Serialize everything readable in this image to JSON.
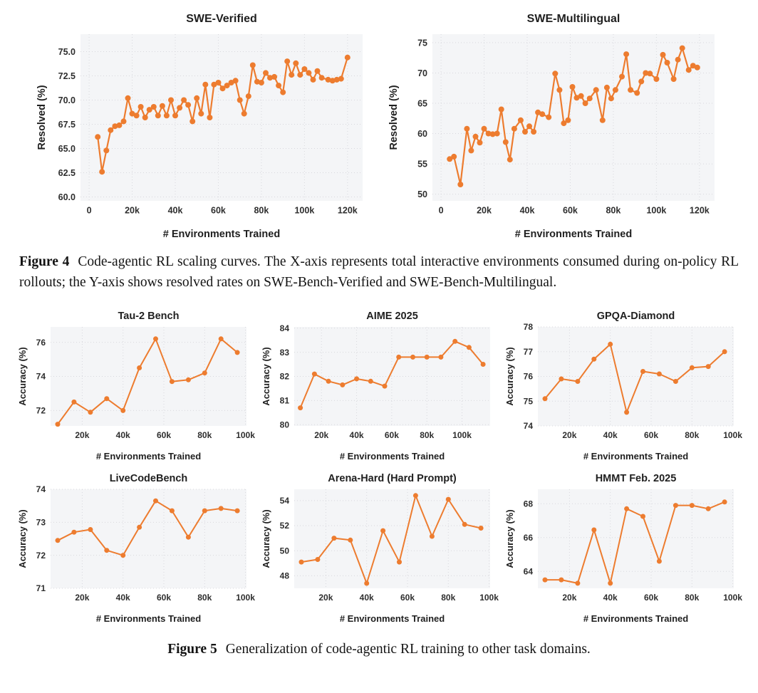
{
  "page": {
    "background": "#ffffff",
    "accent_color": "#ED7C2F",
    "panel_color": "#f4f5f7",
    "grid_color": "#d8d8dd",
    "text_color": "#1f1f1f",
    "tick_color": "#2e2e2e"
  },
  "figure4": {
    "caption_label": "Figure 4",
    "caption_text": "Code-agentic RL scaling curves. The X-axis represents total interactive environments consumed during on-policy RL rollouts; the Y-axis shows resolved rates on SWE-Bench-Verified and SWE-Bench-Multilingual."
  },
  "figure5": {
    "caption_label": "Figure 5",
    "caption_text": "Generalization of code-agentic RL training to other task domains."
  },
  "chart_data": [
    {
      "id": "swe-verified",
      "type": "line",
      "title": "SWE-Verified",
      "xlabel": "# Environments Trained",
      "ylabel": "Resolved (%)",
      "x_unit": "thousands of environments",
      "xlim": [
        -4,
        127
      ],
      "ylim": [
        59.6,
        76.8
      ],
      "xticks": [
        {
          "v": 0,
          "label": "0"
        },
        {
          "v": 20,
          "label": "20k"
        },
        {
          "v": 40,
          "label": "40k"
        },
        {
          "v": 60,
          "label": "60k"
        },
        {
          "v": 80,
          "label": "80k"
        },
        {
          "v": 100,
          "label": "100k"
        },
        {
          "v": 120,
          "label": "120k"
        }
      ],
      "yticks": [
        {
          "v": 60,
          "label": "60.0"
        },
        {
          "v": 62.5,
          "label": "62.5"
        },
        {
          "v": 65,
          "label": "65.0"
        },
        {
          "v": 67.5,
          "label": "67.5"
        },
        {
          "v": 70,
          "label": "70.0"
        },
        {
          "v": 72.5,
          "label": "72.5"
        },
        {
          "v": 75,
          "label": "75.0"
        }
      ],
      "points": [
        [
          4,
          66.2
        ],
        [
          6,
          62.6
        ],
        [
          8,
          64.8
        ],
        [
          10,
          66.9
        ],
        [
          12,
          67.3
        ],
        [
          14,
          67.4
        ],
        [
          16,
          67.8
        ],
        [
          18,
          70.2
        ],
        [
          20,
          68.6
        ],
        [
          22,
          68.4
        ],
        [
          24,
          69.3
        ],
        [
          26,
          68.2
        ],
        [
          28,
          69.0
        ],
        [
          30,
          69.3
        ],
        [
          32,
          68.4
        ],
        [
          34,
          69.4
        ],
        [
          36,
          68.4
        ],
        [
          38,
          70.0
        ],
        [
          40,
          68.4
        ],
        [
          42,
          69.2
        ],
        [
          44,
          70.0
        ],
        [
          46,
          69.5
        ],
        [
          48,
          67.8
        ],
        [
          50,
          70.2
        ],
        [
          52,
          68.6
        ],
        [
          54,
          71.6
        ],
        [
          56,
          68.2
        ],
        [
          58,
          71.6
        ],
        [
          60,
          71.8
        ],
        [
          62,
          71.2
        ],
        [
          64,
          71.5
        ],
        [
          66,
          71.8
        ],
        [
          68,
          72.0
        ],
        [
          70,
          70.0
        ],
        [
          72,
          68.6
        ],
        [
          74,
          70.4
        ],
        [
          76,
          73.6
        ],
        [
          78,
          71.9
        ],
        [
          80,
          71.8
        ],
        [
          82,
          72.8
        ],
        [
          84,
          72.3
        ],
        [
          86,
          72.4
        ],
        [
          88,
          71.5
        ],
        [
          90,
          70.8
        ],
        [
          92,
          74.0
        ],
        [
          94,
          72.6
        ],
        [
          96,
          73.8
        ],
        [
          98,
          72.6
        ],
        [
          100,
          73.2
        ],
        [
          102,
          72.8
        ],
        [
          104,
          72.1
        ],
        [
          106,
          73.0
        ],
        [
          108,
          72.3
        ],
        [
          111,
          72.1
        ],
        [
          113,
          72.0
        ],
        [
          115,
          72.1
        ],
        [
          117,
          72.2
        ],
        [
          120,
          74.4
        ]
      ]
    },
    {
      "id": "swe-multilingual",
      "type": "line",
      "title": "SWE-Multilingual",
      "xlabel": "# Environments Trained",
      "ylabel": "Resolved (%)",
      "x_unit": "thousands of environments",
      "xlim": [
        -4,
        127
      ],
      "ylim": [
        48.9,
        76.4
      ],
      "xticks": [
        {
          "v": 0,
          "label": "0"
        },
        {
          "v": 20,
          "label": "20k"
        },
        {
          "v": 40,
          "label": "40k"
        },
        {
          "v": 60,
          "label": "60k"
        },
        {
          "v": 80,
          "label": "80k"
        },
        {
          "v": 100,
          "label": "100k"
        },
        {
          "v": 120,
          "label": "120k"
        }
      ],
      "yticks": [
        {
          "v": 50,
          "label": "50"
        },
        {
          "v": 55,
          "label": "55"
        },
        {
          "v": 60,
          "label": "60"
        },
        {
          "v": 65,
          "label": "65"
        },
        {
          "v": 70,
          "label": "70"
        },
        {
          "v": 75,
          "label": "75"
        }
      ],
      "points": [
        [
          4,
          55.8
        ],
        [
          6,
          56.2
        ],
        [
          9,
          51.6
        ],
        [
          12,
          60.8
        ],
        [
          14,
          57.2
        ],
        [
          16,
          59.5
        ],
        [
          18,
          58.5
        ],
        [
          20,
          60.8
        ],
        [
          22,
          60.0
        ],
        [
          24,
          59.9
        ],
        [
          26,
          60.0
        ],
        [
          28,
          64.0
        ],
        [
          30,
          58.6
        ],
        [
          32,
          55.7
        ],
        [
          34,
          60.8
        ],
        [
          37,
          62.2
        ],
        [
          39,
          60.3
        ],
        [
          41,
          61.2
        ],
        [
          43,
          60.3
        ],
        [
          45,
          63.5
        ],
        [
          47,
          63.2
        ],
        [
          50,
          62.7
        ],
        [
          53,
          69.9
        ],
        [
          55,
          67.2
        ],
        [
          57,
          61.7
        ],
        [
          59,
          62.2
        ],
        [
          61,
          67.7
        ],
        [
          63,
          65.9
        ],
        [
          65,
          66.2
        ],
        [
          67,
          65.0
        ],
        [
          69,
          65.8
        ],
        [
          72,
          67.2
        ],
        [
          75,
          62.2
        ],
        [
          77,
          67.6
        ],
        [
          79,
          65.8
        ],
        [
          81,
          67.2
        ],
        [
          84,
          69.4
        ],
        [
          86,
          73.1
        ],
        [
          88,
          67.2
        ],
        [
          91,
          66.7
        ],
        [
          93,
          68.6
        ],
        [
          95,
          70.0
        ],
        [
          97,
          69.9
        ],
        [
          100,
          69.0
        ],
        [
          103,
          73.0
        ],
        [
          105,
          71.7
        ],
        [
          108,
          69.0
        ],
        [
          110,
          72.2
        ],
        [
          112,
          74.1
        ],
        [
          115,
          70.5
        ],
        [
          117,
          71.2
        ],
        [
          119,
          70.9
        ]
      ]
    },
    {
      "id": "tau-2-bench",
      "type": "line",
      "title": "Tau-2 Bench",
      "xlabel": "# Environments Trained",
      "ylabel": "Accuracy (%)",
      "x_unit": "thousands of environments",
      "xlim": [
        4.5,
        100.5
      ],
      "ylim": [
        71.1,
        76.9
      ],
      "xticks": [
        {
          "v": 20,
          "label": "20k"
        },
        {
          "v": 40,
          "label": "40k"
        },
        {
          "v": 60,
          "label": "60k"
        },
        {
          "v": 80,
          "label": "80k"
        },
        {
          "v": 100,
          "label": "100k"
        }
      ],
      "yticks": [
        {
          "v": 72,
          "label": "72"
        },
        {
          "v": 74,
          "label": "74"
        },
        {
          "v": 76,
          "label": "76"
        }
      ],
      "points": [
        [
          8,
          71.2
        ],
        [
          16,
          72.5
        ],
        [
          24,
          71.9
        ],
        [
          32,
          72.7
        ],
        [
          40,
          72.0
        ],
        [
          48,
          74.5
        ],
        [
          56,
          76.2
        ],
        [
          64,
          73.7
        ],
        [
          72,
          73.8
        ],
        [
          80,
          74.2
        ],
        [
          88,
          76.2
        ],
        [
          96,
          75.4
        ]
      ]
    },
    {
      "id": "aime-2025",
      "type": "line",
      "title": "AIME 2025",
      "xlabel": "# Environments Trained",
      "ylabel": "Accuracy (%)",
      "x_unit": "thousands of environments",
      "xlim": [
        4.5,
        116
      ],
      "ylim": [
        79.95,
        84.05
      ],
      "xticks": [
        {
          "v": 20,
          "label": "20k"
        },
        {
          "v": 40,
          "label": "40k"
        },
        {
          "v": 60,
          "label": "60k"
        },
        {
          "v": 80,
          "label": "80k"
        },
        {
          "v": 100,
          "label": "100k"
        }
      ],
      "yticks": [
        {
          "v": 80,
          "label": "80"
        },
        {
          "v": 81,
          "label": "81"
        },
        {
          "v": 82,
          "label": "82"
        },
        {
          "v": 83,
          "label": "83"
        },
        {
          "v": 84,
          "label": "84"
        }
      ],
      "points": [
        [
          8,
          80.7
        ],
        [
          16,
          82.1
        ],
        [
          24,
          81.8
        ],
        [
          32,
          81.65
        ],
        [
          40,
          81.9
        ],
        [
          48,
          81.8
        ],
        [
          56,
          81.6
        ],
        [
          64,
          82.8
        ],
        [
          72,
          82.8
        ],
        [
          80,
          82.8
        ],
        [
          88,
          82.8
        ],
        [
          96,
          83.45
        ],
        [
          104,
          83.2
        ],
        [
          112,
          82.5
        ]
      ]
    },
    {
      "id": "gpqa-diamond",
      "type": "line",
      "title": "GPQA-Diamond",
      "xlabel": "# Environments Trained",
      "ylabel": "Accuracy (%)",
      "x_unit": "thousands of environments",
      "xlim": [
        4.5,
        100.5
      ],
      "ylim": [
        74,
        78
      ],
      "xticks": [
        {
          "v": 20,
          "label": "20k"
        },
        {
          "v": 40,
          "label": "40k"
        },
        {
          "v": 60,
          "label": "60k"
        },
        {
          "v": 80,
          "label": "80k"
        },
        {
          "v": 100,
          "label": "100k"
        }
      ],
      "yticks": [
        {
          "v": 74,
          "label": "74"
        },
        {
          "v": 75,
          "label": "75"
        },
        {
          "v": 76,
          "label": "76"
        },
        {
          "v": 77,
          "label": "77"
        },
        {
          "v": 78,
          "label": "78"
        }
      ],
      "points": [
        [
          8,
          75.1
        ],
        [
          16,
          75.9
        ],
        [
          24,
          75.8
        ],
        [
          32,
          76.7
        ],
        [
          40,
          77.3
        ],
        [
          48,
          74.55
        ],
        [
          56,
          76.2
        ],
        [
          64,
          76.1
        ],
        [
          72,
          75.8
        ],
        [
          80,
          76.35
        ],
        [
          88,
          76.4
        ],
        [
          96,
          77.0
        ]
      ]
    },
    {
      "id": "livecodebench",
      "type": "line",
      "title": "LiveCodeBench",
      "xlabel": "# Environments Trained",
      "ylabel": "Accuracy (%)",
      "x_unit": "thousands of environments",
      "xlim": [
        4.5,
        100.5
      ],
      "ylim": [
        71,
        74
      ],
      "xticks": [
        {
          "v": 20,
          "label": "20k"
        },
        {
          "v": 40,
          "label": "40k"
        },
        {
          "v": 60,
          "label": "60k"
        },
        {
          "v": 80,
          "label": "80k"
        },
        {
          "v": 100,
          "label": "100k"
        }
      ],
      "yticks": [
        {
          "v": 71,
          "label": "71"
        },
        {
          "v": 72,
          "label": "72"
        },
        {
          "v": 73,
          "label": "73"
        },
        {
          "v": 74,
          "label": "74"
        }
      ],
      "points": [
        [
          8,
          72.45
        ],
        [
          16,
          72.7
        ],
        [
          24,
          72.78
        ],
        [
          32,
          72.15
        ],
        [
          40,
          72.0
        ],
        [
          48,
          72.85
        ],
        [
          56,
          73.65
        ],
        [
          64,
          73.35
        ],
        [
          72,
          72.55
        ],
        [
          80,
          73.35
        ],
        [
          88,
          73.42
        ],
        [
          96,
          73.35
        ]
      ]
    },
    {
      "id": "arena-hard",
      "type": "line",
      "title": "Arena-Hard (Hard Prompt)",
      "xlabel": "# Environments Trained",
      "ylabel": "Accuracy (%)",
      "x_unit": "thousands of environments",
      "xlim": [
        4.5,
        100.5
      ],
      "ylim": [
        47.0,
        54.9
      ],
      "xticks": [
        {
          "v": 20,
          "label": "20k"
        },
        {
          "v": 40,
          "label": "40k"
        },
        {
          "v": 60,
          "label": "60k"
        },
        {
          "v": 80,
          "label": "80k"
        },
        {
          "v": 100,
          "label": "100k"
        }
      ],
      "yticks": [
        {
          "v": 48,
          "label": "48"
        },
        {
          "v": 50,
          "label": "50"
        },
        {
          "v": 52,
          "label": "52"
        },
        {
          "v": 54,
          "label": "54"
        }
      ],
      "points": [
        [
          8,
          49.1
        ],
        [
          16,
          49.3
        ],
        [
          24,
          51.0
        ],
        [
          32,
          50.85
        ],
        [
          40,
          47.4
        ],
        [
          48,
          51.6
        ],
        [
          56,
          49.1
        ],
        [
          64,
          54.4
        ],
        [
          72,
          51.15
        ],
        [
          80,
          54.1
        ],
        [
          88,
          52.1
        ],
        [
          96,
          51.8
        ]
      ]
    },
    {
      "id": "hmmt-feb-2025",
      "type": "line",
      "title": "HMMT Feb. 2025",
      "xlabel": "# Environments Trained",
      "ylabel": "Accuracy (%)",
      "x_unit": "thousands of environments",
      "xlim": [
        4.5,
        100.5
      ],
      "ylim": [
        63.0,
        68.85
      ],
      "xticks": [
        {
          "v": 20,
          "label": "20k"
        },
        {
          "v": 40,
          "label": "40k"
        },
        {
          "v": 60,
          "label": "60k"
        },
        {
          "v": 80,
          "label": "80k"
        },
        {
          "v": 100,
          "label": "100k"
        }
      ],
      "yticks": [
        {
          "v": 64,
          "label": "64"
        },
        {
          "v": 66,
          "label": "66"
        },
        {
          "v": 68,
          "label": "68"
        }
      ],
      "points": [
        [
          8,
          63.5
        ],
        [
          16,
          63.5
        ],
        [
          24,
          63.3
        ],
        [
          32,
          66.45
        ],
        [
          40,
          63.3
        ],
        [
          48,
          67.7
        ],
        [
          56,
          67.25
        ],
        [
          64,
          64.6
        ],
        [
          72,
          67.9
        ],
        [
          80,
          67.9
        ],
        [
          88,
          67.7
        ],
        [
          96,
          68.1
        ]
      ]
    }
  ]
}
